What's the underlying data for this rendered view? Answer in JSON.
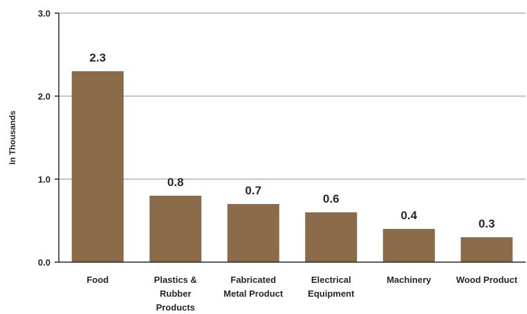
{
  "chart_data": {
    "type": "bar",
    "title": "",
    "xlabel": "",
    "ylabel": "In Thousands",
    "categories": [
      "Food",
      "Plastics & Rubber Products",
      "Fabricated Metal Product",
      "Electrical Equipment",
      "Machinery",
      "Wood Product"
    ],
    "category_lines": [
      [
        "Food"
      ],
      [
        "Plastics &",
        "Rubber",
        "Products"
      ],
      [
        "Fabricated",
        "Metal Product"
      ],
      [
        "Electrical",
        "Equipment"
      ],
      [
        "Machinery"
      ],
      [
        "Wood Product"
      ]
    ],
    "values": [
      2.3,
      0.8,
      0.7,
      0.6,
      0.4,
      0.3
    ],
    "data_labels": [
      "2.3",
      "0.8",
      "0.7",
      "0.6",
      "0.4",
      "0.3"
    ],
    "ylim": [
      0,
      3
    ],
    "yticks": [
      0,
      1,
      2,
      3
    ],
    "ytick_labels": [
      "0.0",
      "1.0",
      "2.0",
      "3.0"
    ],
    "grid": true,
    "legend": "none",
    "bar_color": "#8B6B4A",
    "grid_color": "#8C8C8C",
    "axis_color": "#262626"
  }
}
